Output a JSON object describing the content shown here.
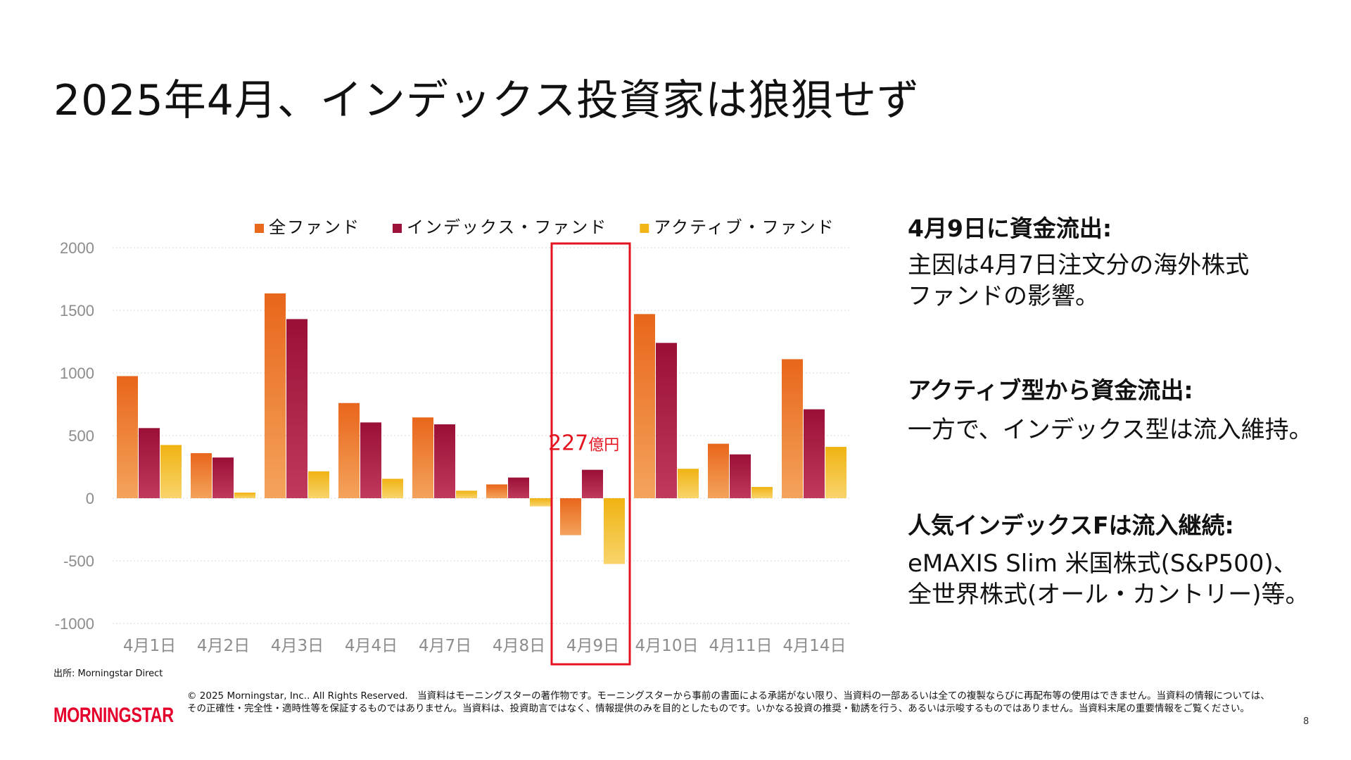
{
  "title": "2025年4月、インデックス投資家は狼狽せず",
  "colors": {
    "all_funds": "#e8681c",
    "index_funds": "#9c1238",
    "active_funds": "#f2b517",
    "highlight_box": "#e3131f"
  },
  "chart_data": {
    "type": "bar",
    "categories": [
      "4月1日",
      "4月2日",
      "4月3日",
      "4月4日",
      "4月7日",
      "4月8日",
      "4月9日",
      "4月10日",
      "4月11日",
      "4月14日"
    ],
    "series": [
      {
        "name": "全ファンド",
        "values": [
          975,
          360,
          1635,
          760,
          645,
          110,
          -295,
          1470,
          435,
          1110
        ]
      },
      {
        "name": "インデックス・ファンド",
        "values": [
          560,
          325,
          1430,
          605,
          590,
          165,
          227,
          1240,
          350,
          710
        ]
      },
      {
        "name": "アクティブ・ファンド",
        "values": [
          425,
          45,
          215,
          155,
          60,
          -65,
          -525,
          235,
          90,
          410
        ]
      }
    ],
    "ylim": [
      -1000,
      2000
    ],
    "yticks": [
      2000,
      1500,
      1000,
      500,
      0,
      -500,
      -1000
    ],
    "grid": true,
    "legend_position": "top",
    "highlight_category": "4月9日",
    "annotation": {
      "number": "227",
      "unit": "億円"
    }
  },
  "panel": {
    "h1": "4月9日に資金流出:",
    "p1_line1": "主因は4月7日注文分の海外株式",
    "p1_line2": "ファンドの影響。",
    "h2": "アクティブ型から資金流出:",
    "p2": "一方で、インデックス型は流入維持。",
    "h3": "人気インデックスFは流入継続:",
    "p3_line1": "eMAXIS Slim 米国株式(S&P500)、",
    "p3_line2": "全世界株式(オール・カントリー)等。"
  },
  "footer": {
    "source": "出所: Morningstar Direct",
    "logo": "MORNINGSTAR",
    "disclaimer": "© 2025 Morningstar, Inc.. All Rights Reserved.　当資料はモーニングスターの著作物です。モーニングスターから事前の書面による承諾がない限り、当資料の一部あるいは全ての複製ならびに再配布等の使用はできません。当資料の情報については、その正確性・完全性・適時性等を保証するものではありません。当資料は、投資助言ではなく、情報提供のみを目的としたものです。いかなる投資の推奨・勧誘を行う、あるいは示唆するものではありません。当資料末尾の重要情報をご覧ください。",
    "page_number": "8"
  }
}
